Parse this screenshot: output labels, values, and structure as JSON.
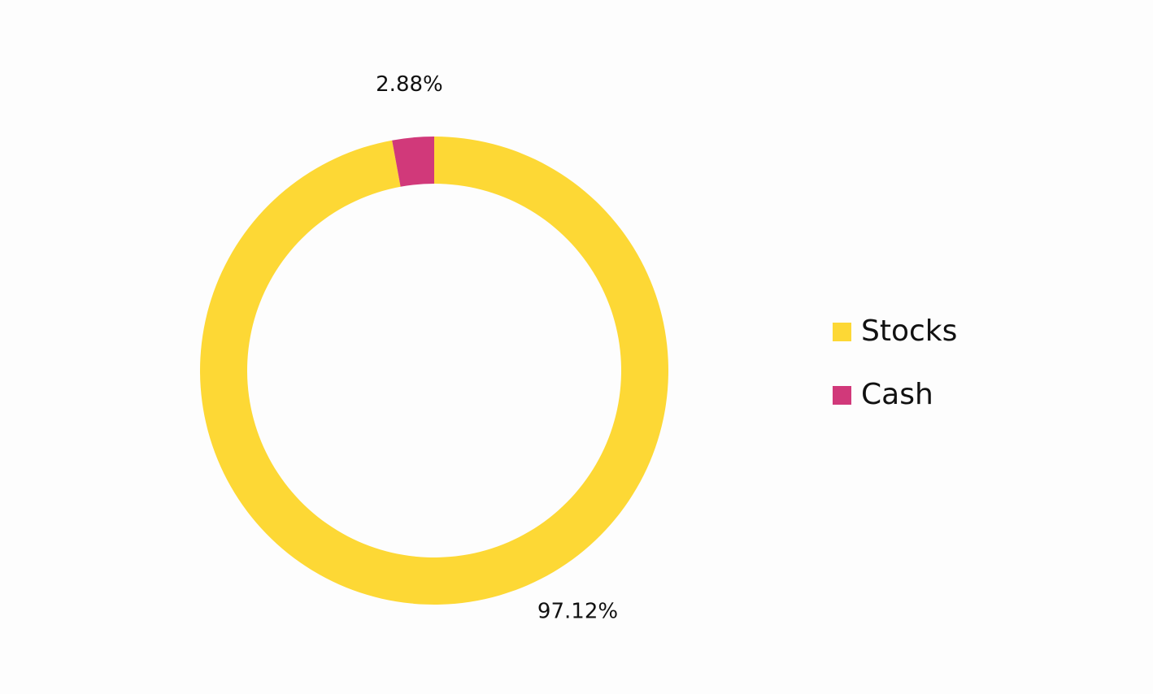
{
  "chart_data": {
    "type": "pie",
    "donut": true,
    "categories": [
      "Stocks",
      "Cash"
    ],
    "values": [
      97.12,
      2.88
    ],
    "data_labels": [
      "97.12%",
      "2.88%"
    ],
    "colors": [
      "#fdd835",
      "#d1397a"
    ],
    "legend_position": "right"
  },
  "legend": {
    "items": [
      {
        "label": "Stocks",
        "color": "#fdd835"
      },
      {
        "label": "Cash",
        "color": "#d1397a"
      }
    ]
  }
}
